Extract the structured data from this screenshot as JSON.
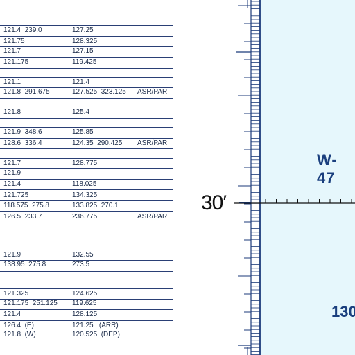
{
  "table": {
    "groups": [
      {
        "rows": [
          {
            "c1": "121.4  239.0",
            "c2": "127.25",
            "c3": ""
          },
          {
            "c1": "121.75",
            "c2": "128.325",
            "c3": ""
          },
          {
            "c1": "121.7",
            "c2": "127.15",
            "c3": ""
          },
          {
            "c1": "121.175",
            "c2": "119.425",
            "c3": ""
          }
        ]
      },
      {
        "rows": [
          {
            "c1": "121.1",
            "c2": "121.4",
            "c3": ""
          },
          {
            "c1": "121.8  291.675",
            "c2": "127.525  323.125",
            "c3": "ASR/PAR"
          }
        ]
      },
      {
        "rows": [
          {
            "c1": "121.8",
            "c2": "125.4",
            "c3": ""
          }
        ]
      },
      {
        "rows": [
          {
            "c1": "121.9  348.6",
            "c2": "125.85",
            "c3": ""
          },
          {
            "c1": "128.6  336.4",
            "c2": "124.35  290.425",
            "c3": "ASR/PAR"
          }
        ]
      },
      {
        "rows": [
          {
            "c1": "121.7",
            "c2": "128.775",
            "c3": ""
          },
          {
            "c1": "121.9",
            "c2": "",
            "c3": ""
          },
          {
            "c1": "121.4",
            "c2": "118.025",
            "c3": ""
          },
          {
            "c1": "121.725",
            "c2": "134.325",
            "c3": ""
          },
          {
            "c1": "118.575  275.8",
            "c2": "133.825  270.1",
            "c3": ""
          },
          {
            "c1": "126.5  233.7",
            "c2": "236.775",
            "c3": "ASR/PAR"
          }
        ]
      },
      {
        "rows": [
          {
            "c1": "121.9",
            "c2": "132.55",
            "c3": ""
          },
          {
            "c1": "138.95  275.8",
            "c2": "273.5",
            "c3": ""
          }
        ]
      },
      {
        "rows": [
          {
            "c1": "121.325",
            "c2": "124.625",
            "c3": ""
          },
          {
            "c1": "121.175  251.125",
            "c2": "119.625",
            "c3": ""
          },
          {
            "c1": "121.4",
            "c2": "128.125",
            "c3": ""
          },
          {
            "c1": "126.4  (E)\n121.8  (W)",
            "c2": "121.25   (ARR)\n120.525  (DEP)",
            "c3": ""
          }
        ]
      }
    ]
  },
  "map": {
    "latitude_label": "30′",
    "area_label": "W-47",
    "bottom_label": "130",
    "water_color": "#e6f7fc",
    "border_color": "#1b3a7a",
    "label_color": "#1a3f7e"
  }
}
